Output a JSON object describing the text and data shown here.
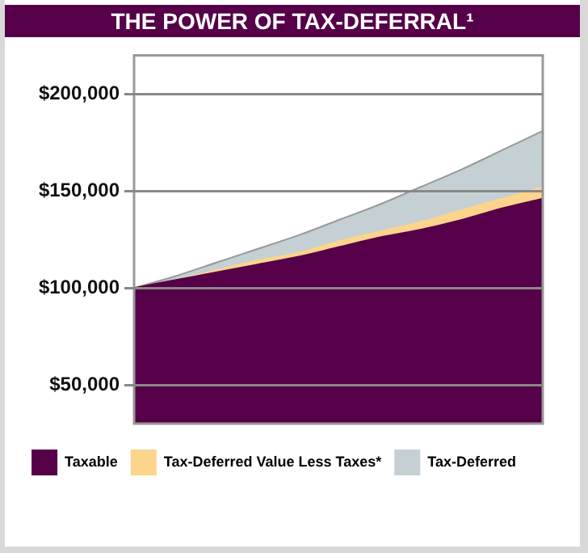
{
  "chart_data": {
    "type": "area",
    "title": "THE POWER OF TAX-DEFERRAL¹",
    "categories": [
      null,
      null,
      null,
      null,
      null,
      null,
      null,
      null,
      null,
      null,
      null
    ],
    "series": [
      {
        "name": "Taxable",
        "color": "#550049",
        "values": [
          100000,
          104000,
          108000,
          112000,
          116000,
          121000,
          126000,
          130000,
          135000,
          141000,
          146000
        ]
      },
      {
        "name": "Tax-Deferred Value Less Taxes*",
        "color": "#fdd48c",
        "values": [
          100000,
          104000,
          109000,
          114000,
          118000,
          124000,
          129000,
          134000,
          140000,
          146000,
          152000
        ]
      },
      {
        "name": "Tax-Deferred",
        "color": "#c4d0d3",
        "values": [
          100000,
          106000,
          113000,
          120000,
          127000,
          135000,
          143000,
          152000,
          161000,
          171000,
          181000
        ]
      }
    ],
    "ylim": [
      30000,
      220000
    ],
    "yticks": [
      {
        "value": 50000,
        "label": "$50,000"
      },
      {
        "value": 100000,
        "label": "$100,000"
      },
      {
        "value": 150000,
        "label": "$150,000"
      },
      {
        "value": 200000,
        "label": "$200,000"
      }
    ],
    "grid": "y",
    "legend": "bottom"
  }
}
